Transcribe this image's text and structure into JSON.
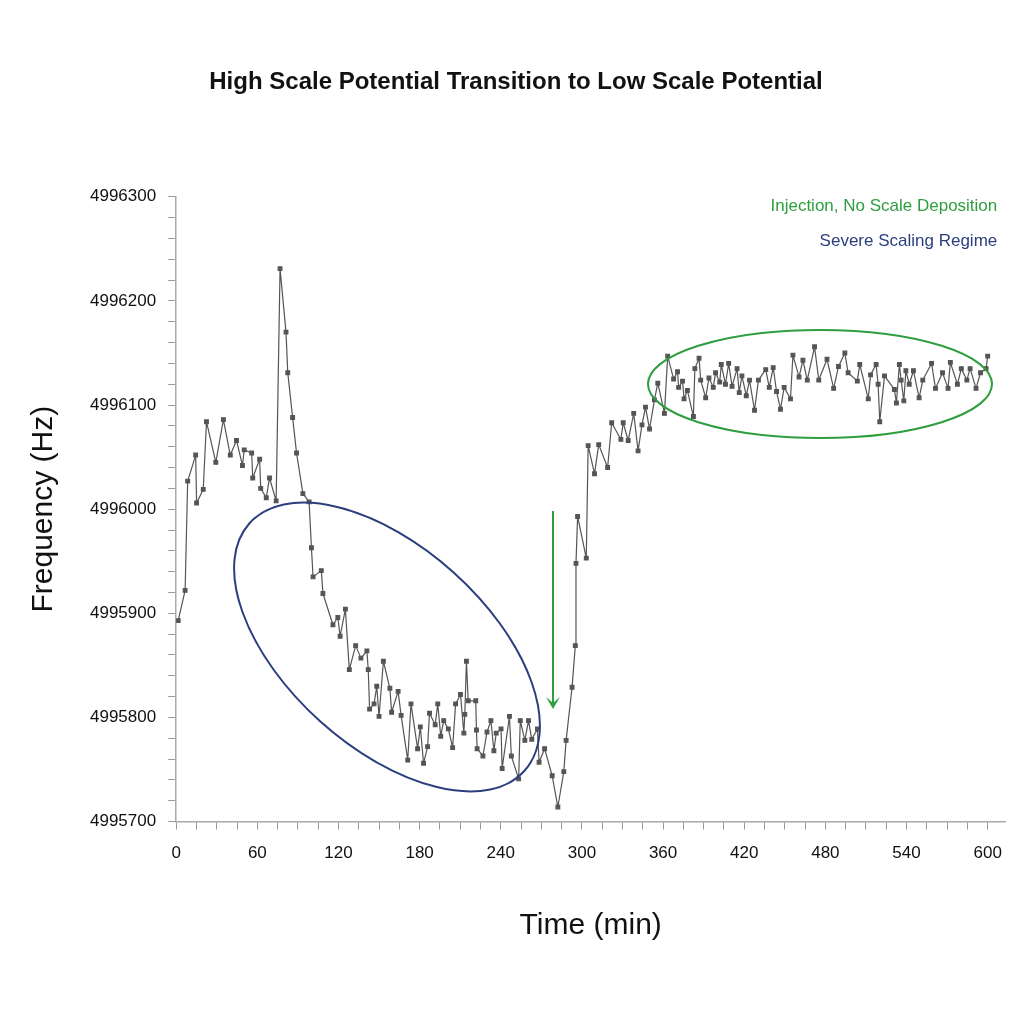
{
  "chart_data": {
    "type": "line",
    "title": "High Scale Potential Transition to Low Scale Potential",
    "xlabel": "Time (min)",
    "ylabel": "Frequency (Hz)",
    "annotations": [
      "Injection, No Scale Deposition",
      "Severe Scaling Regime"
    ],
    "marker": "square",
    "grid": false,
    "legend": false,
    "xlim": [
      0,
      613
    ],
    "ylim": [
      4995700,
      4996300
    ],
    "xticks": [
      0,
      {
        "value": 15,
        "label": null
      },
      {
        "value": 30,
        "label": null
      },
      {
        "value": 45,
        "label": null
      },
      60,
      {
        "value": 75,
        "label": null
      },
      {
        "value": 90,
        "label": null
      },
      {
        "value": 105,
        "label": null
      },
      120,
      {
        "value": 135,
        "label": null
      },
      {
        "value": 150,
        "label": null
      },
      {
        "value": 165,
        "label": null
      },
      180,
      {
        "value": 195,
        "label": null
      },
      {
        "value": 210,
        "label": null
      },
      {
        "value": 225,
        "label": null
      },
      240,
      {
        "value": 255,
        "label": null
      },
      {
        "value": 270,
        "label": null
      },
      {
        "value": 285,
        "label": null
      },
      300,
      {
        "value": 315,
        "label": null
      },
      {
        "value": 330,
        "label": null
      },
      {
        "value": 345,
        "label": null
      },
      360,
      {
        "value": 375,
        "label": null
      },
      {
        "value": 390,
        "label": null
      },
      {
        "value": 405,
        "label": null
      },
      420,
      {
        "value": 435,
        "label": null
      },
      {
        "value": 450,
        "label": null
      },
      {
        "value": 465,
        "label": null
      },
      480,
      {
        "value": 495,
        "label": null
      },
      {
        "value": 510,
        "label": null
      },
      {
        "value": 525,
        "label": null
      },
      540,
      {
        "value": 555,
        "label": null
      },
      {
        "value": 570,
        "label": null
      },
      {
        "value": 585,
        "label": null
      },
      600
    ],
    "yticks": [
      4995700,
      {
        "value": 4995720,
        "label": null
      },
      {
        "value": 4995740,
        "label": null
      },
      {
        "value": 4995760,
        "label": null
      },
      {
        "value": 4995780,
        "label": null
      },
      4995800,
      {
        "value": 4995820,
        "label": null
      },
      {
        "value": 4995840,
        "label": null
      },
      {
        "value": 4995860,
        "label": null
      },
      {
        "value": 4995880,
        "label": null
      },
      4995900,
      {
        "value": 4995920,
        "label": null
      },
      {
        "value": 4995940,
        "label": null
      },
      {
        "value": 4995960,
        "label": null
      },
      {
        "value": 4995980,
        "label": null
      },
      4996000,
      {
        "value": 4996020,
        "label": null
      },
      {
        "value": 4996040,
        "label": null
      },
      {
        "value": 4996060,
        "label": null
      },
      {
        "value": 4996080,
        "label": null
      },
      4996100,
      {
        "value": 4996120,
        "label": null
      },
      {
        "value": 4996140,
        "label": null
      },
      {
        "value": 4996160,
        "label": null
      },
      {
        "value": 4996180,
        "label": null
      },
      4996200,
      {
        "value": 4996220,
        "label": null
      },
      {
        "value": 4996240,
        "label": null
      },
      {
        "value": 4996260,
        "label": null
      },
      {
        "value": 4996280,
        "label": null
      },
      4996300
    ],
    "series": [
      {
        "color": "#555555",
        "x": [
          1.5,
          6.6,
          8.5,
          14.4,
          15.1,
          20,
          22.4,
          29.3,
          34.9,
          40,
          44.6,
          49,
          50.3,
          55.8,
          56.6,
          61.7,
          62.5,
          66.6,
          69,
          73.9,
          76.8,
          81.2,
          82.5,
          86.1,
          89,
          93.7,
          98.3,
          100,
          101.2,
          107.3,
          108.5,
          115.9,
          119.5,
          121.2,
          125.1,
          128,
          132.7,
          136.6,
          141,
          142,
          143,
          146.3,
          148.3,
          150,
          153.2,
          158,
          159.3,
          164.1,
          166.3,
          171.2,
          173.6,
          178.5,
          180.5,
          182.9,
          185.9,
          187.3,
          191.5,
          193.4,
          195.6,
          197.8,
          201.2,
          204.4,
          206.6,
          210.2,
          212.7,
          213.4,
          214.6,
          215.9,
          221.5,
          222,
          222.5,
          226.8,
          229.8,
          232.7,
          234.9,
          236.6,
          240.2,
          241,
          246.4,
          247.8,
          253.2,
          254.4,
          257.8,
          260.5,
          262.9,
          267.1,
          268.3,
          272.4,
          278,
          282.2,
          286.6,
          288.3,
          292.7,
          295.1,
          295.6,
          296.8,
          303.2,
          304.6,
          309.3,
          312.4,
          319,
          322,
          328.8,
          330.5,
          334.2,
          338.3,
          341.5,
          344.4,
          347,
          350,
          353.6,
          356.1,
          361,
          363.4,
          367.8,
          370.7,
          371.5,
          374.4,
          375.5,
          378,
          382.4,
          383.5,
          386.6,
          387.8,
          391.5,
          393.9,
          397.1,
          398.8,
          401.9,
          403,
          406.1,
          408.5,
          411,
          414.7,
          416.3,
          418.3,
          421.5,
          423.9,
          427.6,
          430.5,
          435.9,
          438.5,
          441.4,
          443.9,
          446.8,
          449.5,
          454.2,
          456,
          460.5,
          463.4,
          466.6,
          472,
          475.1,
          481.2,
          486.1,
          489.7,
          494.4,
          496.8,
          503.6,
          505.4,
          511.7,
          513.4,
          517.5,
          519,
          520.2,
          523.7,
          531,
          532.5,
          534.7,
          536,
          538,
          539.5,
          542,
          545.1,
          549.3,
          552,
          558.5,
          561.4,
          566.6,
          570.7,
          572.4,
          577.6,
          580.5,
          584.6,
          587,
          591.4,
          594.7,
          598.8,
          600
        ],
        "values": [
          4995893,
          4995922,
          4996027,
          4996052,
          4996006,
          4996019,
          4996084,
          4996045,
          4996086,
          4996052,
          4996066,
          4996042,
          4996057,
          4996054,
          4996030,
          4996048,
          4996020,
          4996011,
          4996030,
          4996008,
          4996231,
          4996170,
          4996131,
          4996088,
          4996054,
          4996015,
          4996007,
          4995963,
          4995935,
          4995941,
          4995919,
          4995889,
          4995896,
          4995878,
          4995904,
          4995846,
          4995869,
          4995857,
          4995864,
          4995846,
          4995808,
          4995813,
          4995830,
          4995801,
          4995854,
          4995828,
          4995805,
          4995825,
          4995802,
          4995759,
          4995813,
          4995770,
          4995791,
          4995756,
          4995772,
          4995804,
          4995793,
          4995813,
          4995782,
          4995797,
          4995789,
          4995771,
          4995813,
          4995822,
          4995785,
          4995803,
          4995854,
          4995816,
          4995816,
          4995788,
          4995770,
          4995763,
          4995786,
          4995797,
          4995768,
          4995785,
          4995789,
          4995751,
          4995801,
          4995763,
          4995741,
          4995797,
          4995778,
          4995797,
          4995779,
          4995789,
          4995757,
          4995770,
          4995744,
          4995714,
          4995748,
          4995778,
          4995829,
          4995869,
          4995948,
          4995993,
          4995953,
          4996061,
          4996034,
          4996062,
          4996040,
          4996083,
          4996067,
          4996083,
          4996066,
          4996092,
          4996056,
          4996081,
          4996098,
          4996077,
          4996105,
          4996121,
          4996092,
          4996147,
          4996125,
          4996132,
          4996117,
          4996123,
          4996106,
          4996114,
          4996089,
          4996135,
          4996145,
          4996124,
          4996107,
          4996126,
          4996117,
          4996131,
          4996122,
          4996139,
          4996120,
          4996140,
          4996118,
          4996135,
          4996112,
          4996128,
          4996109,
          4996124,
          4996095,
          4996124,
          4996134,
          4996117,
          4996136,
          4996113,
          4996096,
          4996117,
          4996106,
          4996148,
          4996127,
          4996143,
          4996124,
          4996156,
          4996124,
          4996144,
          4996116,
          4996137,
          4996150,
          4996131,
          4996123,
          4996139,
          4996106,
          4996129,
          4996139,
          4996120,
          4996084,
          4996128,
          4996115,
          4996102,
          4996139,
          4996124,
          4996104,
          4996133,
          4996120,
          4996133,
          4996107,
          4996124,
          4996140,
          4996116,
          4996131,
          4996116,
          4996141,
          4996120,
          4996135,
          4996124,
          4996135,
          4996116,
          4996131,
          4996135,
          4996147
        ]
      }
    ]
  }
}
